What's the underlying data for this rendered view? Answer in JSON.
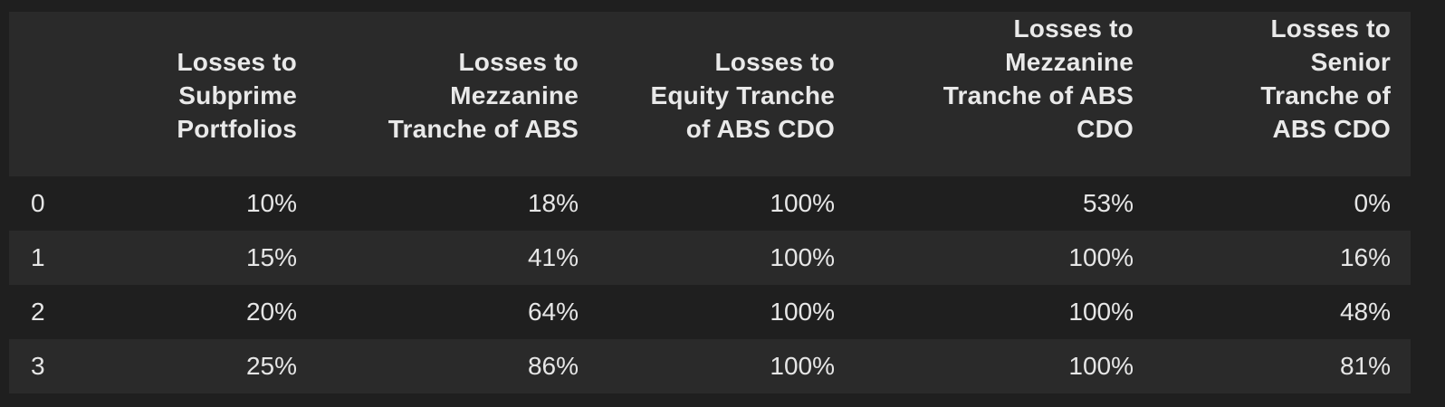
{
  "table": {
    "columns": [
      "",
      "Losses to Subprime Portfolios",
      "Losses to Mezzanine Tranche of ABS",
      "Losses to Equity Tranche of ABS CDO",
      "Losses to Mezzanine Tranche of ABS CDO",
      "Losses to Senior Tranche of ABS CDO"
    ],
    "header_lines": [
      [],
      [
        "Losses to",
        "Subprime",
        "Portfolios"
      ],
      [
        "Losses to",
        "Mezzanine",
        "Tranche of ABS"
      ],
      [
        "Losses to",
        "Equity Tranche",
        "of ABS CDO"
      ],
      [
        "Losses to",
        "Mezzanine",
        "Tranche of ABS",
        "CDO"
      ],
      [
        "Losses to",
        "Senior",
        "Tranche of",
        "ABS CDO"
      ]
    ],
    "rows": [
      [
        "0",
        "10%",
        "18%",
        "100%",
        "53%",
        "0%"
      ],
      [
        "1",
        "15%",
        "41%",
        "100%",
        "100%",
        "16%"
      ],
      [
        "2",
        "20%",
        "64%",
        "100%",
        "100%",
        "48%"
      ],
      [
        "3",
        "25%",
        "86%",
        "100%",
        "100%",
        "81%"
      ]
    ]
  },
  "colors": {
    "background": "#1f1f1f",
    "header_background": "#2a2a2a",
    "stripe_background": "#2a2a2a",
    "text": "#e6e6e6"
  }
}
